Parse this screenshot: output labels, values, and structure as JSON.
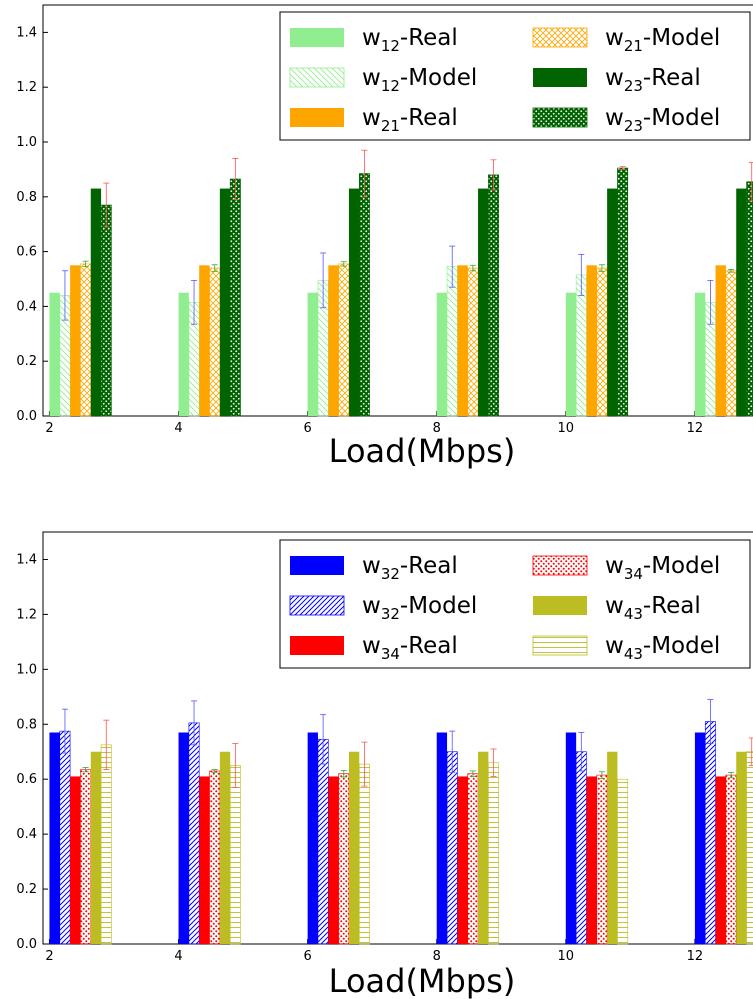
{
  "chart_data": [
    {
      "type": "bar",
      "x": [
        2,
        4,
        6,
        8,
        10,
        12
      ],
      "xticks": [
        "2",
        "4",
        "6",
        "8",
        "10",
        "12"
      ],
      "yticks": [
        "0.0",
        "0.2",
        "0.4",
        "0.6",
        "0.8",
        "1.0",
        "1.2",
        "1.4"
      ],
      "ylim": [
        0,
        1.5
      ],
      "xlabel": "Load(Mbps)",
      "ylabel": "",
      "legend_position": "top-right",
      "legend_columns": 2,
      "series": [
        {
          "name": "w12-Real",
          "sub": "12",
          "values": [
            0.45,
            0.45,
            0.45,
            0.45,
            0.45,
            0.45
          ],
          "color": "#90ee90",
          "pattern": "solid",
          "errors": null
        },
        {
          "name": "w12-Model",
          "sub": "12",
          "values": [
            0.44,
            0.415,
            0.495,
            0.545,
            0.515,
            0.415
          ],
          "color": "#90ee90",
          "pattern": "diag",
          "errors": [
            0.09,
            0.08,
            0.1,
            0.075,
            0.075,
            0.08
          ],
          "error_color": "#5555ff"
        },
        {
          "name": "w21-Real",
          "sub": "21",
          "values": [
            0.55,
            0.55,
            0.55,
            0.55,
            0.55,
            0.55
          ],
          "color": "#ffa500",
          "pattern": "solid",
          "errors": null
        },
        {
          "name": "w21-Model",
          "sub": "21",
          "values": [
            0.555,
            0.54,
            0.555,
            0.54,
            0.54,
            0.53
          ],
          "color": "#ffa500",
          "pattern": "cross",
          "errors": [
            0.01,
            0.012,
            0.008,
            0.01,
            0.012,
            0.005
          ],
          "error_color": "#33aa33"
        },
        {
          "name": "w23-Real",
          "sub": "23",
          "values": [
            0.83,
            0.83,
            0.83,
            0.83,
            0.83,
            0.83
          ],
          "color": "#006400",
          "pattern": "solid",
          "errors": null
        },
        {
          "name": "w23-Model",
          "sub": "23",
          "values": [
            0.77,
            0.865,
            0.885,
            0.88,
            0.905,
            0.855
          ],
          "color": "#006400",
          "pattern": "dots",
          "errors": [
            0.08,
            0.075,
            0.085,
            0.055,
            0.005,
            0.07
          ],
          "error_color": "#ff5555"
        }
      ]
    },
    {
      "type": "bar",
      "x": [
        2,
        4,
        6,
        8,
        10,
        12
      ],
      "xticks": [
        "2",
        "4",
        "6",
        "8",
        "10",
        "12"
      ],
      "yticks": [
        "0.0",
        "0.2",
        "0.4",
        "0.6",
        "0.8",
        "1.0",
        "1.2",
        "1.4"
      ],
      "ylim": [
        0,
        1.5
      ],
      "xlabel": "Load(Mbps)",
      "ylabel": "",
      "legend_position": "top-right",
      "legend_columns": 2,
      "series": [
        {
          "name": "w32-Real",
          "sub": "32",
          "values": [
            0.77,
            0.77,
            0.77,
            0.77,
            0.77,
            0.77
          ],
          "color": "#0000ff",
          "pattern": "solid",
          "errors": null
        },
        {
          "name": "w32-Model",
          "sub": "32",
          "values": [
            0.775,
            0.805,
            0.745,
            0.7,
            0.7,
            0.81
          ],
          "color": "#0000ff",
          "pattern": "diag2",
          "errors": [
            0.08,
            0.08,
            0.09,
            0.075,
            0.07,
            0.08
          ],
          "error_color": "#5555ff"
        },
        {
          "name": "w34-Real",
          "sub": "34",
          "values": [
            0.61,
            0.61,
            0.61,
            0.61,
            0.61,
            0.61
          ],
          "color": "#ff0000",
          "pattern": "solid",
          "errors": null
        },
        {
          "name": "w34-Model",
          "sub": "34",
          "values": [
            0.635,
            0.63,
            0.62,
            0.62,
            0.615,
            0.615
          ],
          "color": "#ff0000",
          "pattern": "dots",
          "errors": [
            0.008,
            0.005,
            0.012,
            0.01,
            0.012,
            0.01
          ],
          "error_color": "#33aa33"
        },
        {
          "name": "w43-Real",
          "sub": "43",
          "values": [
            0.7,
            0.7,
            0.7,
            0.7,
            0.7,
            0.7
          ],
          "color": "#bcbd22",
          "pattern": "solid",
          "errors": null
        },
        {
          "name": "w43-Model",
          "sub": "43",
          "values": [
            0.725,
            0.65,
            0.655,
            0.66,
            0.6,
            0.7
          ],
          "color": "#bcbd22",
          "pattern": "hlines",
          "errors": [
            0.09,
            0.08,
            0.08,
            0.05,
            0.0,
            0.05
          ],
          "error_color": "#ff5555"
        }
      ]
    }
  ]
}
